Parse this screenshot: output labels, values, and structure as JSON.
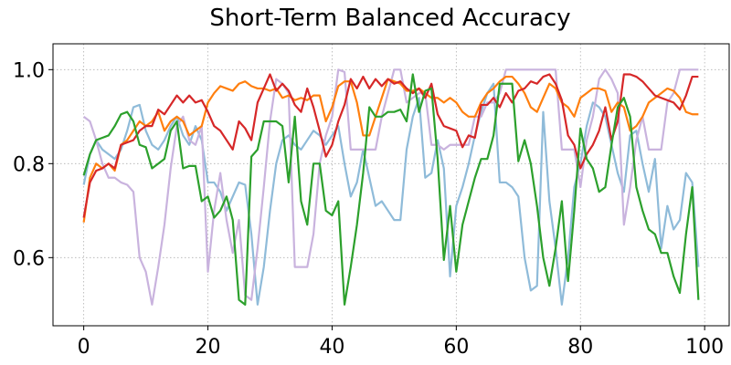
{
  "chart_data": {
    "type": "line",
    "title": "Short-Term Balanced Accuracy",
    "x": [
      0,
      1,
      2,
      3,
      4,
      5,
      6,
      7,
      8,
      9,
      10,
      11,
      12,
      13,
      14,
      15,
      16,
      17,
      18,
      19,
      20,
      21,
      22,
      23,
      24,
      25,
      26,
      27,
      28,
      29,
      30,
      31,
      32,
      33,
      34,
      35,
      36,
      37,
      38,
      39,
      40,
      41,
      42,
      43,
      44,
      45,
      46,
      47,
      48,
      49,
      50,
      51,
      52,
      53,
      54,
      55,
      56,
      57,
      58,
      59,
      60,
      61,
      62,
      63,
      64,
      65,
      66,
      67,
      68,
      69,
      70,
      71,
      72,
      73,
      74,
      75,
      76,
      77,
      78,
      79,
      80,
      81,
      82,
      83,
      84,
      85,
      86,
      87,
      88,
      89,
      90,
      91,
      92,
      93,
      94,
      95,
      96,
      97,
      98,
      99
    ],
    "series": [
      {
        "color": "#8fbbd9",
        "values": [
          0.755,
          0.82,
          0.85,
          0.83,
          0.82,
          0.81,
          0.83,
          0.87,
          0.92,
          0.925,
          0.87,
          0.84,
          0.83,
          0.85,
          0.88,
          0.9,
          0.86,
          0.84,
          0.88,
          0.85,
          0.76,
          0.76,
          0.74,
          0.7,
          0.73,
          0.76,
          0.755,
          0.65,
          0.5,
          0.58,
          0.7,
          0.8,
          0.85,
          0.86,
          0.84,
          0.83,
          0.85,
          0.87,
          0.86,
          0.84,
          0.86,
          0.88,
          0.8,
          0.73,
          0.76,
          0.83,
          0.77,
          0.71,
          0.72,
          0.7,
          0.68,
          0.68,
          0.83,
          0.9,
          0.94,
          0.77,
          0.78,
          0.85,
          0.79,
          0.56,
          0.71,
          0.75,
          0.8,
          0.86,
          0.91,
          0.95,
          0.97,
          0.76,
          0.76,
          0.75,
          0.73,
          0.6,
          0.53,
          0.54,
          0.91,
          0.72,
          0.62,
          0.5,
          0.6,
          0.75,
          0.8,
          0.88,
          0.93,
          0.92,
          0.9,
          0.84,
          0.78,
          0.74,
          0.86,
          0.87,
          0.8,
          0.74,
          0.81,
          0.62,
          0.71,
          0.66,
          0.68,
          0.78,
          0.76,
          0.58
        ]
      },
      {
        "color": "#c9b3de",
        "values": [
          0.9,
          0.89,
          0.85,
          0.8,
          0.77,
          0.77,
          0.76,
          0.755,
          0.74,
          0.6,
          0.57,
          0.5,
          0.58,
          0.67,
          0.79,
          0.88,
          0.9,
          0.85,
          0.84,
          0.88,
          0.57,
          0.7,
          0.78,
          0.68,
          0.61,
          0.68,
          0.52,
          0.51,
          0.62,
          0.75,
          0.89,
          0.98,
          0.97,
          0.95,
          0.58,
          0.58,
          0.58,
          0.65,
          0.8,
          0.86,
          0.9,
          1.0,
          0.995,
          0.83,
          0.83,
          0.83,
          0.83,
          0.83,
          0.9,
          0.95,
          1.0,
          1.0,
          0.93,
          0.94,
          0.95,
          0.95,
          0.84,
          0.84,
          0.83,
          0.84,
          0.84,
          0.84,
          0.84,
          0.9,
          0.9,
          0.93,
          0.93,
          0.95,
          1.0,
          1.0,
          1.0,
          1.0,
          1.0,
          1.0,
          1.0,
          1.0,
          1.0,
          0.83,
          0.83,
          0.83,
          0.75,
          0.85,
          0.9,
          0.98,
          1.0,
          0.98,
          0.95,
          0.67,
          0.75,
          0.85,
          0.9,
          0.83,
          0.83,
          0.83,
          0.93,
          0.95,
          1.0,
          1.0,
          1.0,
          1.0
        ]
      },
      {
        "color": "#ff7f0e",
        "values": [
          0.675,
          0.77,
          0.8,
          0.79,
          0.8,
          0.785,
          0.84,
          0.85,
          0.87,
          0.89,
          0.88,
          0.89,
          0.91,
          0.87,
          0.89,
          0.9,
          0.89,
          0.86,
          0.87,
          0.88,
          0.93,
          0.95,
          0.965,
          0.96,
          0.955,
          0.97,
          0.975,
          0.965,
          0.96,
          0.96,
          0.955,
          0.96,
          0.94,
          0.945,
          0.935,
          0.94,
          0.935,
          0.945,
          0.945,
          0.89,
          0.92,
          0.965,
          0.975,
          0.975,
          0.93,
          0.86,
          0.86,
          0.9,
          0.94,
          0.98,
          0.975,
          0.97,
          0.955,
          0.955,
          0.96,
          0.95,
          0.94,
          0.94,
          0.93,
          0.94,
          0.93,
          0.91,
          0.9,
          0.9,
          0.93,
          0.95,
          0.96,
          0.975,
          0.985,
          0.985,
          0.97,
          0.95,
          0.92,
          0.91,
          0.94,
          0.97,
          0.96,
          0.93,
          0.92,
          0.9,
          0.94,
          0.95,
          0.96,
          0.96,
          0.955,
          0.91,
          0.93,
          0.92,
          0.87,
          0.88,
          0.9,
          0.93,
          0.94,
          0.95,
          0.96,
          0.955,
          0.94,
          0.91,
          0.905,
          0.905
        ]
      },
      {
        "color": "#d62728",
        "values": [
          0.685,
          0.76,
          0.785,
          0.79,
          0.8,
          0.79,
          0.84,
          0.845,
          0.85,
          0.87,
          0.88,
          0.88,
          0.915,
          0.905,
          0.925,
          0.945,
          0.93,
          0.945,
          0.93,
          0.935,
          0.91,
          0.88,
          0.87,
          0.85,
          0.83,
          0.89,
          0.875,
          0.85,
          0.93,
          0.96,
          0.99,
          0.955,
          0.97,
          0.955,
          0.925,
          0.91,
          0.96,
          0.92,
          0.87,
          0.815,
          0.84,
          0.89,
          0.925,
          0.98,
          0.96,
          0.985,
          0.96,
          0.98,
          0.965,
          0.98,
          0.97,
          0.975,
          0.96,
          0.95,
          0.96,
          0.94,
          0.97,
          0.905,
          0.88,
          0.875,
          0.87,
          0.835,
          0.86,
          0.855,
          0.925,
          0.925,
          0.94,
          0.92,
          0.95,
          0.93,
          0.955,
          0.96,
          0.975,
          0.97,
          0.985,
          0.99,
          0.97,
          0.935,
          0.86,
          0.84,
          0.79,
          0.82,
          0.84,
          0.87,
          0.92,
          0.85,
          0.89,
          0.99,
          0.99,
          0.985,
          0.975,
          0.96,
          0.945,
          0.94,
          0.935,
          0.93,
          0.915,
          0.945,
          0.985,
          0.985
        ]
      },
      {
        "color": "#2ca02c",
        "values": [
          0.775,
          0.82,
          0.85,
          0.855,
          0.86,
          0.88,
          0.905,
          0.91,
          0.89,
          0.84,
          0.835,
          0.79,
          0.8,
          0.81,
          0.87,
          0.89,
          0.79,
          0.795,
          0.795,
          0.72,
          0.73,
          0.685,
          0.7,
          0.73,
          0.68,
          0.51,
          0.5,
          0.815,
          0.83,
          0.89,
          0.89,
          0.89,
          0.88,
          0.76,
          0.9,
          0.72,
          0.67,
          0.8,
          0.8,
          0.7,
          0.69,
          0.72,
          0.5,
          0.58,
          0.67,
          0.78,
          0.92,
          0.9,
          0.9,
          0.91,
          0.91,
          0.915,
          0.89,
          0.99,
          0.91,
          0.955,
          0.96,
          0.81,
          0.595,
          0.71,
          0.57,
          0.67,
          0.72,
          0.77,
          0.81,
          0.81,
          0.86,
          0.97,
          0.97,
          0.97,
          0.805,
          0.85,
          0.8,
          0.71,
          0.6,
          0.54,
          0.62,
          0.72,
          0.55,
          0.7,
          0.875,
          0.81,
          0.79,
          0.74,
          0.75,
          0.84,
          0.92,
          0.94,
          0.9,
          0.75,
          0.7,
          0.66,
          0.65,
          0.61,
          0.61,
          0.56,
          0.525,
          0.65,
          0.75,
          0.51
        ]
      }
    ],
    "xlim": [
      -4.95,
      103.95
    ],
    "ylim": [
      0.455,
      1.055
    ],
    "xticks": [
      0,
      20,
      40,
      60,
      80,
      100
    ],
    "yticks": [
      0.6,
      0.8,
      {
        "value": 1,
        "label": "1.0"
      }
    ],
    "grid": true
  }
}
